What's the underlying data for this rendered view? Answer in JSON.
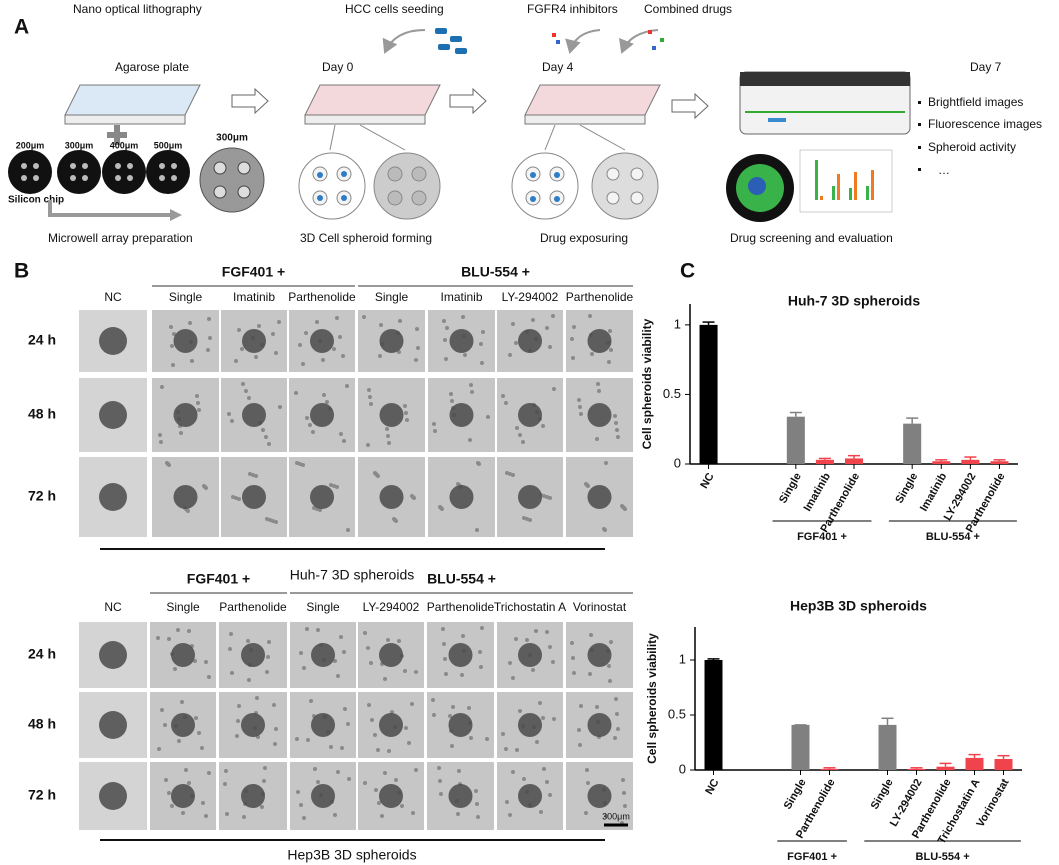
{
  "panel_a": {
    "label": "A",
    "steps": [
      "Nano optical lithography",
      "HCC cells seeding",
      "FGFR4 inhibitors",
      "Combined drugs"
    ],
    "agarose": "Agarose plate",
    "days": [
      "Day 0",
      "Day 4",
      "Day 7"
    ],
    "chip_sizes": [
      "200μm",
      "300μm",
      "400μm",
      "500μm"
    ],
    "array_size": "300μm",
    "chip": "Silicon chip",
    "captions": [
      "Microwell array preparation",
      "3D Cell spheroid forming",
      "Drug exposuring",
      "Drug screening and evaluation"
    ],
    "outputs": [
      "Brightfield images",
      "Fluorescence images",
      "Spheroid activity",
      "…"
    ]
  },
  "panel_b": {
    "label": "B",
    "grids": [
      {
        "groups": [
          "FGF401 +",
          "BLU-554 +"
        ],
        "columns": [
          "NC",
          "Single",
          "Imatinib",
          "Parthenolide",
          "Single",
          "Imatinib",
          "LY-294002",
          "Parthenolide"
        ],
        "rows": [
          "24 h",
          "48 h",
          "72 h"
        ],
        "caption": "Huh-7 3D spheroids"
      },
      {
        "groups": [
          "FGF401 +",
          "BLU-554 +"
        ],
        "columns": [
          "NC",
          "Single",
          "Parthenolide",
          "Single",
          "LY-294002",
          "Parthenolide",
          "Trichostatin A",
          "Vorinostat"
        ],
        "rows": [
          "24 h",
          "48 h",
          "72 h"
        ],
        "caption": "Hep3B 3D spheroids",
        "scale_bar": "300μm"
      }
    ]
  },
  "panel_c": {
    "label": "C"
  },
  "chart_data": [
    {
      "type": "bar",
      "title": "Huh-7 3D spheroids",
      "ylabel": "Cell spheroids viability",
      "categories": [
        "NC",
        null,
        null,
        "Single",
        "Imatinib",
        "Parthenolide",
        null,
        "Single",
        "Imatinib",
        "LY-294002",
        "Parthenolide"
      ],
      "values": [
        1.0,
        null,
        null,
        0.34,
        0.03,
        0.04,
        null,
        0.29,
        0.02,
        0.03,
        0.02
      ],
      "errors": [
        0.02,
        null,
        null,
        0.03,
        0.01,
        0.02,
        null,
        0.04,
        0.01,
        0.02,
        0.01
      ],
      "colors": [
        "#000000",
        null,
        null,
        "#808080",
        "#f0434c",
        "#f0434c",
        null,
        "#808080",
        "#f0434c",
        "#f0434c",
        "#f0434c"
      ],
      "groups": [
        "FGF401 +",
        "BLU-554 +"
      ],
      "ylim": [
        0,
        1.15
      ],
      "yticks": [
        0,
        0.5,
        1
      ]
    },
    {
      "type": "bar",
      "title": "Hep3B 3D spheroids",
      "ylabel": "Cell spheroids viability",
      "categories": [
        "NC",
        null,
        null,
        "Single",
        "Parthenolide",
        null,
        "Single",
        "LY-294002",
        "Parthenolide",
        "Trichostatin A",
        "Vorinostat"
      ],
      "values": [
        1.0,
        null,
        null,
        0.41,
        0.01,
        null,
        0.41,
        0.01,
        0.03,
        0.11,
        0.1
      ],
      "errors": [
        0.01,
        null,
        null,
        0.0,
        0.01,
        null,
        0.06,
        0.01,
        0.03,
        0.03,
        0.03
      ],
      "colors": [
        "#000000",
        null,
        null,
        "#808080",
        "#f0434c",
        null,
        "#808080",
        "#f0434c",
        "#f0434c",
        "#f0434c",
        "#f0434c"
      ],
      "groups": [
        "FGF401 +",
        "BLU-554 +"
      ],
      "ylim": [
        0,
        1.3
      ],
      "yticks": [
        0,
        0.5,
        1
      ]
    }
  ]
}
